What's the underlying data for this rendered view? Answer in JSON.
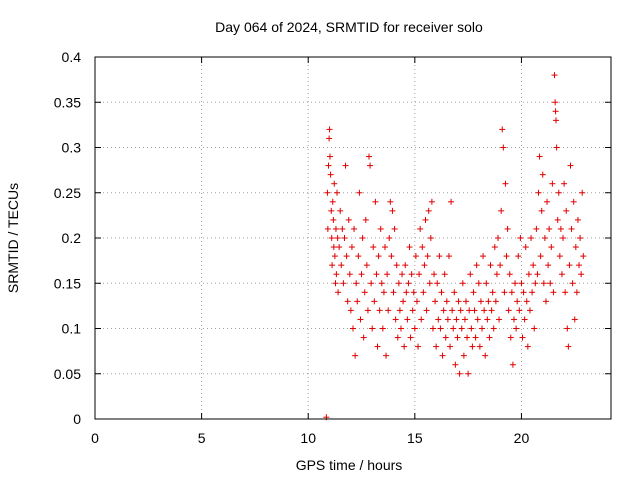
{
  "chart_data": {
    "type": "scatter",
    "title": "Day 064 of 2024, SRMTID for receiver solo",
    "xlabel": "GPS time / hours",
    "ylabel": "SRMTID / TECUs",
    "xlim": [
      0,
      24.2
    ],
    "ylim": [
      0,
      0.4
    ],
    "xticks": [
      "0",
      "5",
      "10",
      "15",
      "20"
    ],
    "xtick_values": [
      0,
      5,
      10,
      15,
      20
    ],
    "yticks": [
      "0",
      "0.05",
      "0.1",
      "0.15",
      "0.2",
      "0.25",
      "0.3",
      "0.35",
      "0.4"
    ],
    "ytick_values": [
      0,
      0.05,
      0.1,
      0.15,
      0.2,
      0.25,
      0.3,
      0.35,
      0.4
    ],
    "grid": true,
    "marker": "+",
    "color": "#e00000",
    "series": [
      {
        "values": [
          [
            10.85,
            0.002
          ],
          [
            10.9,
            0.25
          ],
          [
            10.92,
            0.21
          ],
          [
            10.95,
            0.28
          ],
          [
            10.98,
            0.31
          ],
          [
            11.0,
            0.32
          ],
          [
            11.02,
            0.29
          ],
          [
            11.05,
            0.27
          ],
          [
            11.08,
            0.23
          ],
          [
            11.1,
            0.2
          ],
          [
            11.12,
            0.17
          ],
          [
            11.15,
            0.24
          ],
          [
            11.18,
            0.22
          ],
          [
            11.2,
            0.19
          ],
          [
            11.22,
            0.26
          ],
          [
            11.25,
            0.18
          ],
          [
            11.28,
            0.15
          ],
          [
            11.3,
            0.21
          ],
          [
            11.32,
            0.16
          ],
          [
            11.35,
            0.25
          ],
          [
            11.38,
            0.2
          ],
          [
            11.4,
            0.14
          ],
          [
            11.45,
            0.19
          ],
          [
            11.5,
            0.23
          ],
          [
            11.55,
            0.17
          ],
          [
            11.6,
            0.21
          ],
          [
            11.65,
            0.15
          ],
          [
            11.7,
            0.2
          ],
          [
            11.75,
            0.28
          ],
          [
            11.8,
            0.18
          ],
          [
            11.85,
            0.13
          ],
          [
            11.9,
            0.22
          ],
          [
            11.95,
            0.16
          ],
          [
            12.0,
            0.12
          ],
          [
            12.05,
            0.19
          ],
          [
            12.1,
            0.1
          ],
          [
            12.15,
            0.21
          ],
          [
            12.2,
            0.07
          ],
          [
            12.25,
            0.15
          ],
          [
            12.3,
            0.13
          ],
          [
            12.35,
            0.18
          ],
          [
            12.4,
            0.25
          ],
          [
            12.45,
            0.11
          ],
          [
            12.5,
            0.16
          ],
          [
            12.55,
            0.2
          ],
          [
            12.6,
            0.09
          ],
          [
            12.65,
            0.14
          ],
          [
            12.7,
            0.22
          ],
          [
            12.75,
            0.17
          ],
          [
            12.8,
            0.12
          ],
          [
            12.85,
            0.29
          ],
          [
            12.9,
            0.28
          ],
          [
            12.95,
            0.15
          ],
          [
            13.0,
            0.1
          ],
          [
            13.05,
            0.19
          ],
          [
            13.1,
            0.13
          ],
          [
            13.15,
            0.24
          ],
          [
            13.2,
            0.16
          ],
          [
            13.25,
            0.08
          ],
          [
            13.3,
            0.18
          ],
          [
            13.35,
            0.12
          ],
          [
            13.4,
            0.21
          ],
          [
            13.45,
            0.15
          ],
          [
            13.5,
            0.1
          ],
          [
            13.55,
            0.14
          ],
          [
            13.6,
            0.19
          ],
          [
            13.65,
            0.07
          ],
          [
            13.7,
            0.16
          ],
          [
            13.75,
            0.12
          ],
          [
            13.8,
            0.2
          ],
          [
            13.85,
            0.24
          ],
          [
            13.9,
            0.18
          ],
          [
            13.95,
            0.23
          ],
          [
            14.0,
            0.14
          ],
          [
            14.05,
            0.21
          ],
          [
            14.1,
            0.11
          ],
          [
            14.15,
            0.17
          ],
          [
            14.2,
            0.09
          ],
          [
            14.25,
            0.15
          ],
          [
            14.3,
            0.12
          ],
          [
            14.35,
            0.1
          ],
          [
            14.4,
            0.16
          ],
          [
            14.45,
            0.13
          ],
          [
            14.5,
            0.08
          ],
          [
            14.55,
            0.17
          ],
          [
            14.6,
            0.14
          ],
          [
            14.65,
            0.11
          ],
          [
            14.7,
            0.15
          ],
          [
            14.75,
            0.19
          ],
          [
            14.8,
            0.09
          ],
          [
            14.85,
            0.16
          ],
          [
            14.9,
            0.12
          ],
          [
            14.95,
            0.14
          ],
          [
            15.0,
            0.1
          ],
          [
            15.05,
            0.18
          ],
          [
            15.1,
            0.13
          ],
          [
            15.15,
            0.08
          ],
          [
            15.2,
            0.16
          ],
          [
            15.25,
            0.21
          ],
          [
            15.3,
            0.11
          ],
          [
            15.35,
            0.19
          ],
          [
            15.4,
            0.14
          ],
          [
            15.45,
            0.17
          ],
          [
            15.5,
            0.22
          ],
          [
            15.55,
            0.12
          ],
          [
            15.6,
            0.18
          ],
          [
            15.65,
            0.23
          ],
          [
            15.7,
            0.15
          ],
          [
            15.75,
            0.2
          ],
          [
            15.8,
            0.24
          ],
          [
            15.85,
            0.1
          ],
          [
            15.9,
            0.16
          ],
          [
            15.95,
            0.13
          ],
          [
            16.0,
            0.08
          ],
          [
            16.05,
            0.15
          ],
          [
            16.1,
            0.11
          ],
          [
            16.15,
            0.18
          ],
          [
            16.2,
            0.1
          ],
          [
            16.25,
            0.14
          ],
          [
            16.3,
            0.07
          ],
          [
            16.35,
            0.12
          ],
          [
            16.4,
            0.16
          ],
          [
            16.45,
            0.09
          ],
          [
            16.5,
            0.13
          ],
          [
            16.55,
            0.11
          ],
          [
            16.6,
            0.18
          ],
          [
            16.65,
            0.08
          ],
          [
            16.7,
            0.24
          ],
          [
            16.75,
            0.12
          ],
          [
            16.8,
            0.1
          ],
          [
            16.85,
            0.14
          ],
          [
            16.9,
            0.06
          ],
          [
            16.95,
            0.11
          ],
          [
            17.0,
            0.09
          ],
          [
            17.05,
            0.13
          ],
          [
            17.1,
            0.05
          ],
          [
            17.15,
            0.12
          ],
          [
            17.2,
            0.1
          ],
          [
            17.25,
            0.15
          ],
          [
            17.3,
            0.07
          ],
          [
            17.35,
            0.11
          ],
          [
            17.4,
            0.13
          ],
          [
            17.45,
            0.09
          ],
          [
            17.5,
            0.05
          ],
          [
            17.55,
            0.12
          ],
          [
            17.6,
            0.16
          ],
          [
            17.65,
            0.1
          ],
          [
            17.7,
            0.08
          ],
          [
            17.75,
            0.14
          ],
          [
            17.8,
            0.12
          ],
          [
            17.85,
            0.09
          ],
          [
            17.9,
            0.17
          ],
          [
            17.95,
            0.11
          ],
          [
            18.0,
            0.15
          ],
          [
            18.05,
            0.08
          ],
          [
            18.1,
            0.13
          ],
          [
            18.15,
            0.1
          ],
          [
            18.2,
            0.18
          ],
          [
            18.25,
            0.12
          ],
          [
            18.3,
            0.07
          ],
          [
            18.35,
            0.15
          ],
          [
            18.4,
            0.11
          ],
          [
            18.45,
            0.13
          ],
          [
            18.5,
            0.09
          ],
          [
            18.55,
            0.17
          ],
          [
            18.6,
            0.12
          ],
          [
            18.65,
            0.14
          ],
          [
            18.7,
            0.1
          ],
          [
            18.75,
            0.19
          ],
          [
            18.8,
            0.13
          ],
          [
            18.85,
            0.16
          ],
          [
            18.9,
            0.2
          ],
          [
            18.95,
            0.11
          ],
          [
            19.0,
            0.17
          ],
          [
            19.05,
            0.23
          ],
          [
            19.1,
            0.32
          ],
          [
            19.15,
            0.3
          ],
          [
            19.2,
            0.14
          ],
          [
            19.25,
            0.26
          ],
          [
            19.3,
            0.18
          ],
          [
            19.35,
            0.21
          ],
          [
            19.4,
            0.12
          ],
          [
            19.45,
            0.16
          ],
          [
            19.5,
            0.09
          ],
          [
            19.55,
            0.14
          ],
          [
            19.6,
            0.06
          ],
          [
            19.65,
            0.11
          ],
          [
            19.7,
            0.15
          ],
          [
            19.75,
            0.1
          ],
          [
            19.8,
            0.13
          ],
          [
            19.85,
            0.18
          ],
          [
            19.9,
            0.12
          ],
          [
            19.95,
            0.2
          ],
          [
            20.0,
            0.15
          ],
          [
            20.05,
            0.09
          ],
          [
            20.1,
            0.14
          ],
          [
            20.15,
            0.11
          ],
          [
            20.2,
            0.19
          ],
          [
            20.25,
            0.13
          ],
          [
            20.3,
            0.08
          ],
          [
            20.35,
            0.16
          ],
          [
            20.4,
            0.12
          ],
          [
            20.45,
            0.2
          ],
          [
            20.5,
            0.14
          ],
          [
            20.55,
            0.17
          ],
          [
            20.6,
            0.1
          ],
          [
            20.65,
            0.15
          ],
          [
            20.7,
            0.21
          ],
          [
            20.75,
            0.16
          ],
          [
            20.8,
            0.25
          ],
          [
            20.85,
            0.29
          ],
          [
            20.9,
            0.18
          ],
          [
            20.95,
            0.23
          ],
          [
            21.0,
            0.27
          ],
          [
            21.05,
            0.15
          ],
          [
            21.1,
            0.2
          ],
          [
            21.15,
            0.13
          ],
          [
            21.2,
            0.24
          ],
          [
            21.25,
            0.17
          ],
          [
            21.3,
            0.21
          ],
          [
            21.35,
            0.15
          ],
          [
            21.4,
            0.19
          ],
          [
            21.45,
            0.26
          ],
          [
            21.5,
            0.14
          ],
          [
            21.55,
            0.38
          ],
          [
            21.58,
            0.35
          ],
          [
            21.6,
            0.34
          ],
          [
            21.62,
            0.33
          ],
          [
            21.65,
            0.3
          ],
          [
            21.7,
            0.22
          ],
          [
            21.75,
            0.25
          ],
          [
            21.8,
            0.18
          ],
          [
            21.85,
            0.21
          ],
          [
            21.9,
            0.16
          ],
          [
            21.95,
            0.2
          ],
          [
            22.0,
            0.26
          ],
          [
            22.05,
            0.14
          ],
          [
            22.1,
            0.23
          ],
          [
            22.15,
            0.1
          ],
          [
            22.2,
            0.08
          ],
          [
            22.25,
            0.17
          ],
          [
            22.3,
            0.28
          ],
          [
            22.35,
            0.21
          ],
          [
            22.4,
            0.15
          ],
          [
            22.45,
            0.24
          ],
          [
            22.5,
            0.11
          ],
          [
            22.55,
            0.19
          ],
          [
            22.6,
            0.14
          ],
          [
            22.65,
            0.22
          ],
          [
            22.7,
            0.17
          ],
          [
            22.75,
            0.2
          ],
          [
            22.8,
            0.16
          ],
          [
            22.85,
            0.25
          ],
          [
            22.9,
            0.18
          ]
        ]
      }
    ]
  }
}
